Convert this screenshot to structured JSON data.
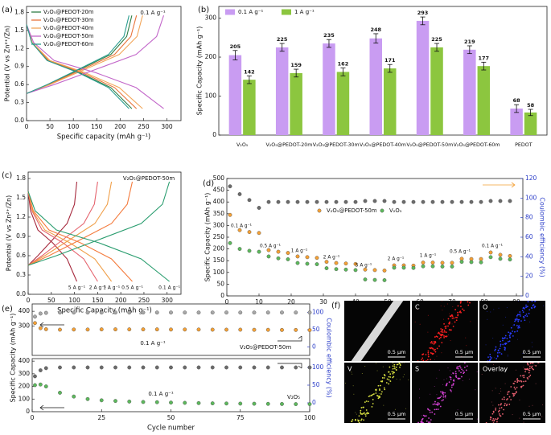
{
  "chart_data": [
    {
      "type": "line",
      "panel": "(a)",
      "xlabel": "Specific capacity (mAh g⁻¹)",
      "ylabel": "Potential (V vs Zn²⁺/Zn)",
      "annotations": [
        "0.1 A g⁻¹"
      ],
      "legend": "upper left",
      "xlim": [
        0,
        330
      ],
      "xticks": [
        0,
        50,
        100,
        150,
        200,
        250,
        300
      ],
      "ylim": [
        0,
        1.9
      ],
      "yticks": [
        {
          "value": 0,
          "label": "0.0"
        },
        0.3,
        0.6,
        0.9,
        1.2,
        1.5,
        1.8
      ],
      "series": [
        {
          "name": "V₂O₅@PEDOT-20m",
          "color": "#2f7d45",
          "x": [
            0,
            11,
            45,
            113,
            180,
            225,
            null,
            0,
            45,
            113,
            180,
            214,
            225
          ],
          "values": [
            1.6,
            1.3,
            1.0,
            0.8,
            0.55,
            0.2,
            null,
            0.45,
            0.6,
            0.85,
            1.1,
            1.4,
            1.75
          ]
        },
        {
          "name": "V₂O₅@PEDOT-30m",
          "color": "#e8743b",
          "x": [
            0,
            12,
            47,
            118,
            188,
            235,
            null,
            0,
            47,
            118,
            188,
            223,
            235
          ],
          "values": [
            1.6,
            1.3,
            1.0,
            0.8,
            0.55,
            0.2,
            null,
            0.45,
            0.6,
            0.85,
            1.1,
            1.4,
            1.75
          ]
        },
        {
          "name": "V₂O₅@PEDOT-40m",
          "color": "#f2a65a",
          "x": [
            0,
            12,
            50,
            124,
            198,
            248,
            null,
            0,
            50,
            124,
            198,
            236,
            248
          ],
          "values": [
            1.6,
            1.3,
            1.0,
            0.8,
            0.55,
            0.2,
            null,
            0.45,
            0.6,
            0.85,
            1.1,
            1.4,
            1.75
          ]
        },
        {
          "name": "V₂O₅@PEDOT-50m",
          "color": "#c266c9",
          "x": [
            0,
            15,
            59,
            147,
            234,
            293,
            null,
            0,
            59,
            147,
            234,
            278,
            293
          ],
          "values": [
            1.6,
            1.3,
            1.0,
            0.8,
            0.55,
            0.2,
            null,
            0.45,
            0.6,
            0.85,
            1.1,
            1.4,
            1.75
          ]
        },
        {
          "name": "V₂O₅@PEDOT-60m",
          "color": "#2a9d8f",
          "x": [
            0,
            11,
            44,
            110,
            175,
            219,
            null,
            0,
            44,
            110,
            175,
            208,
            219
          ],
          "values": [
            1.6,
            1.3,
            1.0,
            0.8,
            0.55,
            0.2,
            null,
            0.45,
            0.6,
            0.85,
            1.1,
            1.4,
            1.75
          ]
        }
      ]
    },
    {
      "type": "bar",
      "panel": "(b)",
      "ylabel": "Specific Capacity (mAh g⁻¹)",
      "legend": "upper left",
      "categories": [
        "V₂O₅",
        "V₂O₅@PEDOT-20m",
        "V₂O₅@PEDOT-30m",
        "V₂O₅@PEDOT-40m",
        "V₂O₅@PEDOT-50m",
        "V₂O₅@PEDOT-60m",
        "PEDOT"
      ],
      "ylim": [
        0,
        330
      ],
      "yticks": [
        0,
        100,
        200,
        300
      ],
      "series": [
        {
          "name": "0.1 A g⁻¹",
          "color": "#c99cf2",
          "values": [
            205,
            225,
            235,
            248,
            293,
            219,
            68
          ],
          "errors": [
            12,
            10,
            10,
            12,
            10,
            10,
            10
          ]
        },
        {
          "name": "1 A g⁻¹",
          "color": "#8cc63f",
          "values": [
            142,
            159,
            162,
            171,
            225,
            177,
            58
          ],
          "errors": [
            10,
            10,
            10,
            10,
            10,
            10,
            8
          ]
        }
      ]
    },
    {
      "type": "line",
      "panel": "(c)",
      "xlabel": "Specific Capacity (mAh g⁻¹)",
      "ylabel": "Potential (V vs Zn²⁺/Zn)",
      "annotations": [
        "V₂O₅@PEDOT-50m"
      ],
      "curve_labels": true,
      "xlim": [
        0,
        330
      ],
      "xticks": [
        0,
        50,
        100,
        150,
        200,
        250,
        300
      ],
      "ylim": [
        0,
        1.9
      ],
      "yticks": [
        {
          "value": 0,
          "label": "0.0"
        },
        0.3,
        0.6,
        0.9,
        1.2,
        1.5,
        1.8
      ],
      "series": [
        {
          "name": "5 A g⁻¹",
          "color": "#a6283c",
          "x": [
            0,
            5,
            21,
            53,
            84,
            105,
            null,
            0,
            21,
            53,
            84,
            100,
            105
          ],
          "values": [
            1.6,
            1.3,
            1.0,
            0.8,
            0.55,
            0.2,
            null,
            0.45,
            0.6,
            0.85,
            1.1,
            1.4,
            1.75
          ]
        },
        {
          "name": "2 A g⁻¹",
          "color": "#e5646e",
          "x": [
            0,
            8,
            30,
            75,
            120,
            150,
            null,
            0,
            30,
            75,
            120,
            143,
            150
          ],
          "values": [
            1.6,
            1.3,
            1.0,
            0.8,
            0.55,
            0.2,
            null,
            0.45,
            0.6,
            0.85,
            1.1,
            1.4,
            1.75
          ]
        },
        {
          "name": "1 A g⁻¹",
          "color": "#f0a04b",
          "x": [
            0,
            9,
            36,
            90,
            144,
            180,
            null,
            0,
            36,
            90,
            144,
            171,
            180
          ],
          "values": [
            1.6,
            1.3,
            1.0,
            0.8,
            0.55,
            0.2,
            null,
            0.45,
            0.6,
            0.85,
            1.1,
            1.4,
            1.75
          ]
        },
        {
          "name": "0.5 A g⁻¹",
          "color": "#f47b3d",
          "x": [
            0,
            11,
            45,
            113,
            180,
            225,
            null,
            0,
            45,
            113,
            180,
            214,
            225
          ],
          "values": [
            1.6,
            1.3,
            1.0,
            0.8,
            0.55,
            0.2,
            null,
            0.45,
            0.6,
            0.85,
            1.1,
            1.4,
            1.75
          ]
        },
        {
          "name": "0.1 A g⁻¹",
          "color": "#2a9d6f",
          "x": [
            0,
            15,
            61,
            153,
            244,
            305,
            null,
            0,
            61,
            153,
            244,
            290,
            305
          ],
          "values": [
            1.6,
            1.3,
            1.0,
            0.8,
            0.55,
            0.2,
            null,
            0.45,
            0.6,
            0.85,
            1.1,
            1.4,
            1.75
          ]
        }
      ]
    },
    {
      "type": "line",
      "panel": "(d)",
      "markers": true,
      "xlabel": "Cycle number",
      "ylabel": "Specific Capacity (mAh g⁻¹)",
      "y2label": "Coulombic efficiency (%)",
      "legend": "upper center",
      "annotations": [
        "0.1 A g⁻¹",
        "0.5 A g⁻¹",
        "1 A g⁻¹",
        "2 A g⁻¹",
        "5 A g⁻¹",
        "2 A g⁻¹",
        "1 A g⁻¹",
        "0.5 A g⁻¹",
        "0.1 A g⁻¹"
      ],
      "xlim": [
        0,
        92
      ],
      "xticks": [
        0,
        10,
        20,
        30,
        40,
        50,
        60,
        70,
        80,
        90
      ],
      "ylim": [
        0,
        500
      ],
      "yticks": [
        0,
        50,
        100,
        150,
        200,
        250,
        300,
        350,
        400,
        450,
        500
      ],
      "y2lim": [
        0,
        120
      ],
      "y2ticks": [
        0,
        20,
        40,
        60,
        80,
        100,
        120
      ],
      "x": [
        1,
        4,
        7,
        10,
        13,
        16,
        19,
        22,
        25,
        28,
        31,
        34,
        37,
        40,
        43,
        46,
        49,
        52,
        55,
        58,
        61,
        64,
        67,
        70,
        73,
        76,
        79,
        82,
        85,
        88
      ],
      "series": [
        {
          "name": "V₂O₅@PEDOT-50m",
          "color": "#f4a035",
          "values": [
            345,
            280,
            272,
            268,
            195,
            188,
            183,
            168,
            165,
            162,
            145,
            140,
            138,
            136,
            112,
            110,
            108,
            130,
            130,
            129,
            142,
            142,
            141,
            141,
            158,
            157,
            157,
            185,
            175,
            170
          ]
        },
        {
          "name": "V₂O₅",
          "color": "#5cb85c",
          "values": [
            225,
            200,
            192,
            188,
            168,
            160,
            156,
            140,
            137,
            135,
            118,
            114,
            112,
            110,
            70,
            68,
            67,
            120,
            120,
            119,
            126,
            126,
            125,
            125,
            145,
            144,
            143,
            165,
            158,
            155
          ]
        },
        {
          "color": "#6b6b6b",
          "axis": "y2",
          "values": [
            112,
            104,
            98,
            90,
            96,
            96,
            96,
            96,
            96,
            96,
            96,
            96,
            96,
            96,
            97,
            97,
            97,
            96,
            96,
            96,
            96,
            96,
            96,
            96,
            96,
            96,
            96,
            97,
            97,
            97
          ]
        }
      ]
    },
    {
      "type": "line",
      "panel": "(e)",
      "markers": true,
      "ylabel": "Specific Capacity (mAh g⁻¹)",
      "y2label": "Coulombic efficiency (%)",
      "annotations": [
        "V₂O₅@PEDOT-50m",
        "0.1 A g⁻¹"
      ],
      "xlim": [
        0,
        100
      ],
      "ylim": [
        100,
        450
      ],
      "yticks": [
        300,
        400
      ],
      "y2lim": [
        -25,
        125
      ],
      "y2ticks": [
        0,
        50,
        100
      ],
      "x": [
        1,
        3,
        5,
        10,
        15,
        20,
        25,
        30,
        35,
        40,
        45,
        50,
        55,
        60,
        65,
        70,
        75,
        80,
        85,
        90,
        95,
        100
      ],
      "series": [
        {
          "color": "#f4a035",
          "values": [
            320,
            285,
            278,
            275,
            276,
            276,
            277,
            277,
            277,
            277,
            277,
            276,
            276,
            276,
            275,
            275,
            275,
            274,
            274,
            273,
            273,
            272
          ]
        },
        {
          "color": "#a8a8a8",
          "axis": "y2",
          "values": [
            88,
            97,
            99,
            100,
            100,
            100,
            100,
            100,
            100,
            100,
            100,
            100,
            100,
            100,
            100,
            100,
            100,
            100,
            100,
            100,
            100,
            100
          ]
        }
      ]
    },
    {
      "type": "line",
      "markers": true,
      "xlabel": "Cycle number",
      "annotations": [
        "0.1 A g⁻¹",
        "V₂O₅"
      ],
      "xlim": [
        0,
        100
      ],
      "xticks": [
        0,
        25,
        50,
        75,
        100
      ],
      "ylim": [
        0,
        420
      ],
      "yticks": [
        0,
        100,
        200,
        300,
        400
      ],
      "y2lim": [
        -25,
        125
      ],
      "y2ticks": [
        0,
        50,
        100
      ],
      "x": [
        1,
        3,
        5,
        10,
        15,
        20,
        25,
        30,
        35,
        40,
        45,
        50,
        55,
        60,
        65,
        70,
        75,
        80,
        85,
        90,
        95,
        100
      ],
      "series": [
        {
          "color": "#5cb85c",
          "values": [
            210,
            215,
            200,
            150,
            120,
            100,
            90,
            85,
            80,
            77,
            75,
            72,
            70,
            68,
            66,
            65,
            64,
            63,
            62,
            61,
            60,
            60
          ]
        },
        {
          "color": "#6b6b6b",
          "axis": "y2",
          "values": [
            75,
            92,
            98,
            100,
            100,
            100,
            100,
            100,
            100,
            100,
            100,
            100,
            100,
            100,
            100,
            100,
            100,
            100,
            100,
            100,
            100,
            100
          ]
        }
      ]
    }
  ],
  "micrographs": {
    "panel": "(f)",
    "tiles": [
      {
        "scale": "0.5 μm",
        "color": "#d9d9d9"
      },
      {
        "label": "C",
        "scale": "0.5 μm",
        "color": "#ff2020"
      },
      {
        "label": "O",
        "scale": "0.5 μm",
        "color": "#2a3cff"
      },
      {
        "label": "V",
        "scale": "0.5 μm",
        "color": "#d8e040"
      },
      {
        "label": "S",
        "scale": "0.5 μm",
        "color": "#d040d0"
      },
      {
        "label": "Overlay",
        "scale": "0.5 μm",
        "color": "#e86070"
      }
    ]
  }
}
